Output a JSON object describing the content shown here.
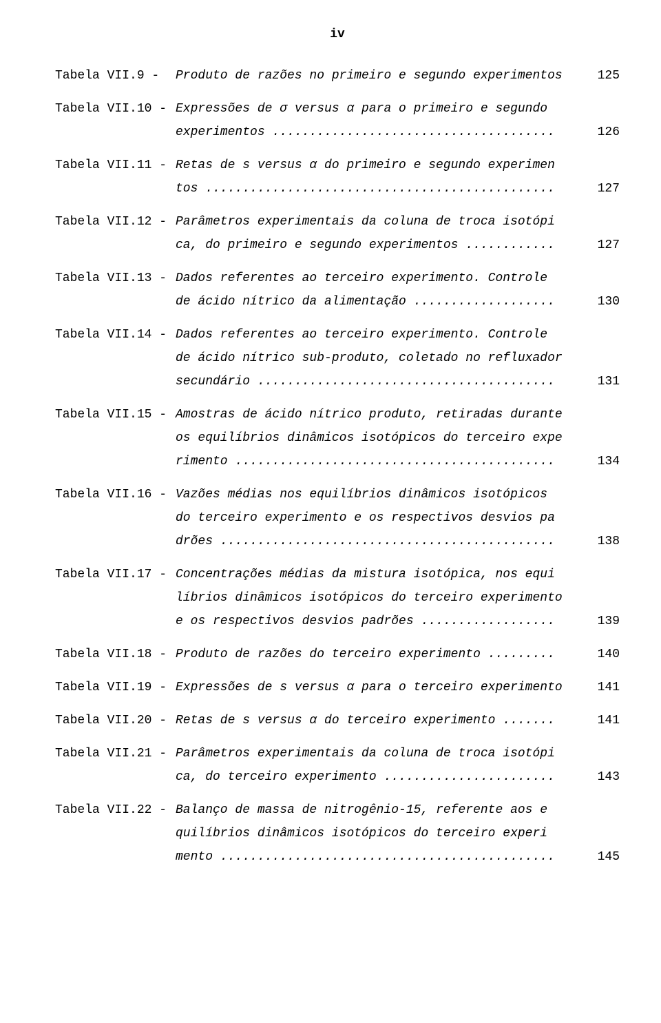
{
  "page_number_top": "iv",
  "entries": [
    {
      "label": "Tabela VII.9  -",
      "lines": [
        "Produto de razões no primeiro e segundo experimentos"
      ],
      "page": "125",
      "dots": false
    },
    {
      "label": "Tabela VII.10 -",
      "lines": [
        "Expressões de σ versus α para o primeiro  e  segundo",
        "experimentos"
      ],
      "page": "126",
      "dots": true
    },
    {
      "label": "Tabela VII.11 -",
      "lines": [
        "Retas de s versus α do primeiro e segundo  experimen",
        "tos"
      ],
      "page": "127",
      "dots": true
    },
    {
      "label": "Tabela VII.12 -",
      "lines": [
        "Parâmetros experimentais da coluna de  troca isotópi",
        "ca, do primeiro e segundo experimentos"
      ],
      "page": "127",
      "dots": true
    },
    {
      "label": "Tabela VII.13 -",
      "lines": [
        "Dados referentes ao terceiro experimento.   Controle",
        "de ácido nítrico da alimentação"
      ],
      "page": "130",
      "dots": true
    },
    {
      "label": "Tabela VII.14 -",
      "lines": [
        "Dados referentes ao terceiro experimento.   Controle",
        "de ácido nítrico sub-produto, coletado no refluxador",
        "secundário"
      ],
      "page": "131",
      "dots": true
    },
    {
      "label": "Tabela VII.15 -",
      "lines": [
        "Amostras de ácido nítrico produto, retiradas durante",
        "os equilíbrios dinâmicos isotópicos do terceiro expe",
        "rimento"
      ],
      "page": "134",
      "dots": true
    },
    {
      "label": "Tabela VII.16 -",
      "lines": [
        "Vazões médias nos equilíbrios dinâmicos   isotópicos",
        "do terceiro experimento e os respectivos desvios  pa",
        "drões"
      ],
      "page": "138",
      "dots": true
    },
    {
      "label": "Tabela VII.17 -",
      "lines": [
        "Concentrações médias da mistura isotópica, nos  equi",
        "líbrios dinâmicos isotópicos do terceiro experimento",
        "e os respectivos desvios padrões"
      ],
      "page": "139",
      "dots": true
    },
    {
      "label": "Tabela VII.18 -",
      "lines": [
        "Produto de razões do terceiro experimento"
      ],
      "page": "140",
      "dots": true
    },
    {
      "label": "Tabela VII.19 -",
      "lines": [
        "Expressões de s versus α para o terceiro experimento"
      ],
      "page": "141",
      "dots": false
    },
    {
      "label": "Tabela VII.20 -",
      "lines": [
        "Retas de s versus α do terceiro experimento"
      ],
      "page": "141",
      "dots": true
    },
    {
      "label": "Tabela VII.21 -",
      "lines": [
        "Parâmetros experimentais da coluna de  troca isotópi",
        "ca, do terceiro experimento"
      ],
      "page": "143",
      "dots": true
    },
    {
      "label": "Tabela VII.22 -",
      "lines": [
        "Balanço de massa de nitrogênio-15, referente aos   e",
        "quilíbrios dinâmicos isotópicos do  terceiro  experi",
        "mento"
      ],
      "page": "145",
      "dots": true
    }
  ]
}
